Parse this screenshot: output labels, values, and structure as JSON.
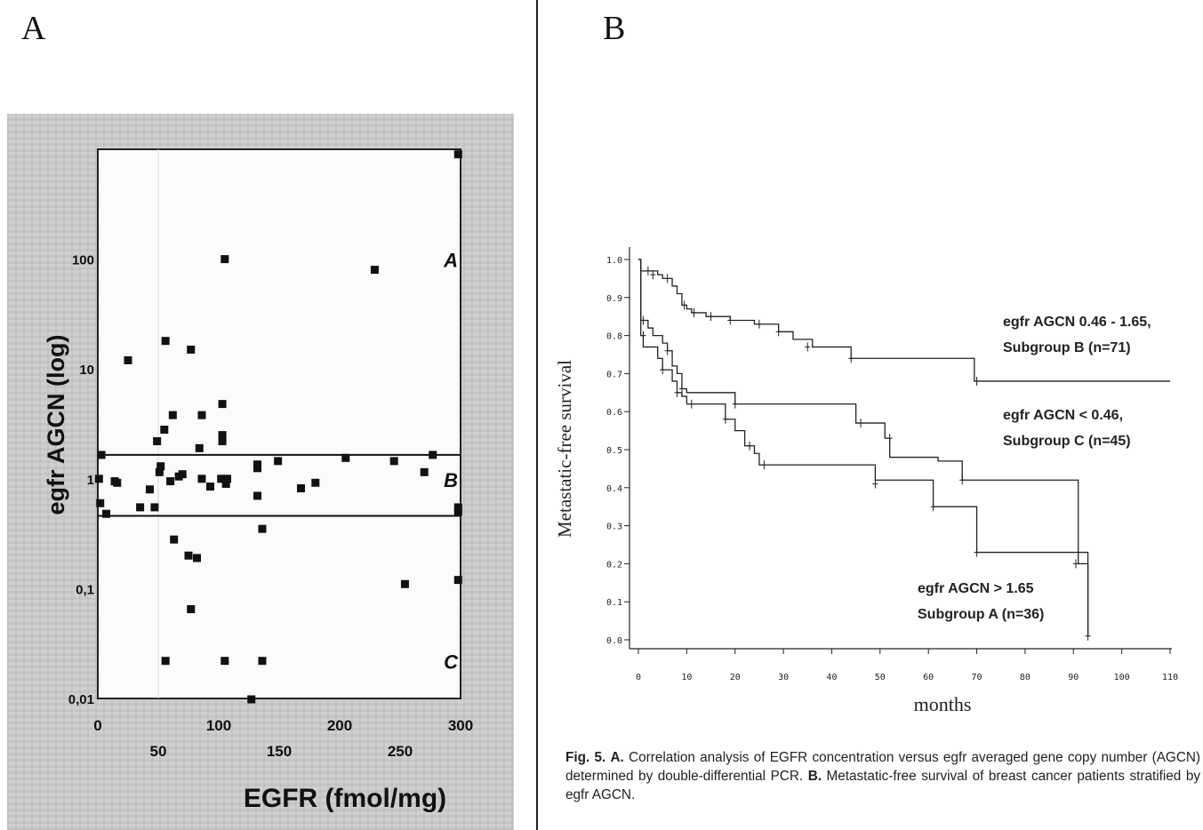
{
  "panel_a_letter": "A",
  "panel_b_letter": "B",
  "caption": {
    "fig_label": "Fig. 5.",
    "a_label": "A.",
    "a_text": " Correlation analysis of EGFR concentration versus egfr averaged gene copy number (AGCN) determined by double-differential PCR. ",
    "b_label": "B.",
    "b_text": " Metastatic-free survival of breast cancer patients stratified by egfr AGCN."
  },
  "chart_data": [
    {
      "type": "scatter",
      "title": "",
      "xlabel": "EGFR (fmol/mg)",
      "ylabel": "egfr AGCN (log)",
      "xscale": "linear",
      "yscale": "log",
      "xlim": [
        0,
        300
      ],
      "ylim": [
        0.01,
        1000
      ],
      "x_ticks_upper": [
        "0",
        "100",
        "200",
        "300"
      ],
      "x_ticks_lower": [
        "50",
        "150",
        "250"
      ],
      "y_ticks": [
        "0,01",
        "0,1",
        "1",
        "10",
        "100"
      ],
      "thresholds": [
        1.65,
        0.46
      ],
      "region_labels": [
        "A",
        "B",
        "C"
      ],
      "grid": false,
      "points": [
        [
          1,
          1
        ],
        [
          2,
          0.6
        ],
        [
          3,
          1.65
        ],
        [
          7,
          0.48
        ],
        [
          14,
          0.95
        ],
        [
          16,
          0.92
        ],
        [
          25,
          12
        ],
        [
          35,
          0.55
        ],
        [
          43,
          0.8
        ],
        [
          47,
          0.55
        ],
        [
          49,
          2.2
        ],
        [
          51,
          1.15
        ],
        [
          52,
          1.3
        ],
        [
          55,
          2.8
        ],
        [
          56,
          18
        ],
        [
          56,
          0.022
        ],
        [
          60,
          0.95
        ],
        [
          62,
          3.8
        ],
        [
          63,
          0.28
        ],
        [
          67,
          1.05
        ],
        [
          70,
          1.1
        ],
        [
          75,
          0.2
        ],
        [
          77,
          0.065
        ],
        [
          77,
          15
        ],
        [
          82,
          0.19
        ],
        [
          84,
          1.9
        ],
        [
          86,
          3.8
        ],
        [
          86,
          1
        ],
        [
          93,
          0.85
        ],
        [
          102,
          1
        ],
        [
          103,
          4.8
        ],
        [
          103,
          2.5
        ],
        [
          103,
          2.2
        ],
        [
          105,
          100
        ],
        [
          105,
          0.022
        ],
        [
          106,
          0.9
        ],
        [
          107,
          1
        ],
        [
          127,
          0.009
        ],
        [
          132,
          0.7
        ],
        [
          132,
          1.25
        ],
        [
          132,
          1.35
        ],
        [
          136,
          0.35
        ],
        [
          136,
          0.022
        ],
        [
          149,
          1.45
        ],
        [
          168,
          0.82
        ],
        [
          180,
          0.92
        ],
        [
          205,
          1.55
        ],
        [
          229,
          80
        ],
        [
          245,
          1.45
        ],
        [
          254,
          0.11
        ],
        [
          270,
          1.15
        ],
        [
          277,
          1.65
        ],
        [
          298,
          0.5
        ],
        [
          298,
          0.55
        ],
        [
          298,
          0.12
        ],
        [
          298,
          900
        ]
      ]
    },
    {
      "type": "line",
      "title": "",
      "xlabel": "months",
      "ylabel": "Metastatic-free survival",
      "xlim": [
        0,
        110
      ],
      "ylim": [
        0,
        1
      ],
      "x_ticks": [
        "0",
        "10",
        "20",
        "30",
        "40",
        "50",
        "60",
        "70",
        "80",
        "90",
        "100",
        "110"
      ],
      "y_ticks": [
        "0.0",
        "0.1",
        "0.2",
        "0.3",
        "0.4",
        "0.5",
        "0.6",
        "0.7",
        "0.8",
        "0.9",
        "1.0"
      ],
      "series": [
        {
          "name": "egfr AGCN 0.46 - 1.65, Subgroup B (n=71)",
          "label_lines": [
            "egfr AGCN 0.46 - 1.65,",
            "Subgroup B (n=71)"
          ],
          "steps": [
            [
              0,
              1
            ],
            [
              0.5,
              0.97
            ],
            [
              4,
              0.96
            ],
            [
              5,
              0.95
            ],
            [
              7,
              0.93
            ],
            [
              8,
              0.91
            ],
            [
              9,
              0.88
            ],
            [
              10,
              0.87
            ],
            [
              11,
              0.86
            ],
            [
              14,
              0.85
            ],
            [
              19,
              0.84
            ],
            [
              24,
              0.83
            ],
            [
              29,
              0.81
            ],
            [
              32,
              0.79
            ],
            [
              36,
              0.77
            ],
            [
              44,
              0.74
            ],
            [
              69.5,
              0.68
            ],
            [
              110,
              0.68
            ]
          ],
          "censors": [
            [
              2,
              0.97
            ],
            [
              3,
              0.96
            ],
            [
              6,
              0.95
            ],
            [
              9.5,
              0.88
            ],
            [
              11.5,
              0.86
            ],
            [
              15,
              0.85
            ],
            [
              19,
              0.84
            ],
            [
              25,
              0.83
            ],
            [
              29,
              0.81
            ],
            [
              35,
              0.77
            ],
            [
              44,
              0.74
            ],
            [
              70,
              0.68
            ]
          ]
        },
        {
          "name": "egfr AGCN < 0.46, Subgroup C (n=45)",
          "label_lines": [
            "egfr AGCN < 0.46,",
            "Subgroup C (n=45)"
          ],
          "steps": [
            [
              0,
              1
            ],
            [
              0.5,
              0.84
            ],
            [
              2,
              0.82
            ],
            [
              3,
              0.8
            ],
            [
              5,
              0.78
            ],
            [
              6,
              0.76
            ],
            [
              7,
              0.72
            ],
            [
              8,
              0.7
            ],
            [
              9,
              0.66
            ],
            [
              10,
              0.65
            ],
            [
              20,
              0.62
            ],
            [
              45,
              0.57
            ],
            [
              51,
              0.53
            ],
            [
              52,
              0.48
            ],
            [
              62,
              0.47
            ],
            [
              67,
              0.42
            ],
            [
              91,
              0.2
            ],
            [
              93,
              0.01
            ]
          ],
          "censors": [
            [
              1,
              0.84
            ],
            [
              6,
              0.76
            ],
            [
              9,
              0.66
            ],
            [
              20,
              0.62
            ],
            [
              46,
              0.57
            ],
            [
              52,
              0.53
            ],
            [
              67,
              0.42
            ],
            [
              90.5,
              0.2
            ]
          ]
        },
        {
          "name": "egfr AGCN > 1.65 Subgroup A (n=36)",
          "label_lines": [
            "egfr AGCN > 1.65",
            "Subgroup A (n=36)"
          ],
          "steps": [
            [
              0,
              1
            ],
            [
              0.5,
              0.8
            ],
            [
              1,
              0.77
            ],
            [
              4,
              0.74
            ],
            [
              5,
              0.71
            ],
            [
              7,
              0.68
            ],
            [
              8,
              0.65
            ],
            [
              9,
              0.64
            ],
            [
              10,
              0.62
            ],
            [
              18,
              0.58
            ],
            [
              20,
              0.55
            ],
            [
              22,
              0.51
            ],
            [
              24,
              0.49
            ],
            [
              25,
              0.46
            ],
            [
              49,
              0.42
            ],
            [
              61,
              0.35
            ],
            [
              70,
              0.23
            ],
            [
              93,
              0.01
            ]
          ],
          "censors": [
            [
              1,
              0.8
            ],
            [
              5,
              0.71
            ],
            [
              8,
              0.65
            ],
            [
              11,
              0.62
            ],
            [
              18,
              0.58
            ],
            [
              23,
              0.51
            ],
            [
              26,
              0.46
            ],
            [
              49,
              0.41
            ],
            [
              61,
              0.35
            ],
            [
              70,
              0.23
            ],
            [
              93,
              0.01
            ]
          ]
        }
      ]
    }
  ]
}
